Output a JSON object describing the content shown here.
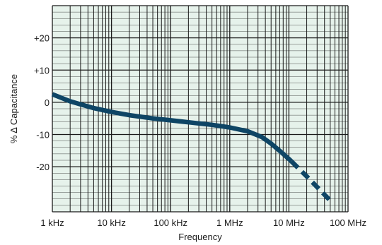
{
  "chart_data": {
    "type": "line",
    "title": "",
    "xlabel": "Frequency",
    "ylabel": "% Δ Capacitance",
    "x_scale": "log",
    "xlim": [
      1000,
      100000000
    ],
    "ylim": [
      -34,
      30
    ],
    "x_ticks": [
      {
        "value": 1000,
        "label": "1 kHz"
      },
      {
        "value": 10000,
        "label": "10 kHz"
      },
      {
        "value": 100000,
        "label": "100 kHz"
      },
      {
        "value": 1000000,
        "label": "1 MHz"
      },
      {
        "value": 10000000,
        "label": "10 MHz"
      },
      {
        "value": 100000000,
        "label": "100 MHz"
      }
    ],
    "y_ticks": [
      {
        "value": 20,
        "label": "+20"
      },
      {
        "value": 10,
        "label": "+10"
      },
      {
        "value": 0,
        "label": "0"
      },
      {
        "value": -10,
        "label": "-10"
      },
      {
        "value": -20,
        "label": "-20"
      }
    ],
    "y_minor_step": 2,
    "grid": true,
    "colors": {
      "plot_background": "#e6f2eb",
      "grid": "#1a1a1a",
      "curve": "#0e4565"
    },
    "series": [
      {
        "style": "solid",
        "x": [
          1000,
          2000,
          5000,
          10000,
          20000,
          50000,
          100000,
          200000,
          500000,
          1000000,
          2000000,
          3500000,
          5000000,
          8000000,
          10000000,
          11000000
        ],
        "y": [
          2.5,
          0.3,
          -1.8,
          -3.0,
          -4.0,
          -5.0,
          -5.6,
          -6.2,
          -7.0,
          -7.8,
          -9.0,
          -10.8,
          -12.8,
          -16.0,
          -17.6,
          -18.3
        ]
      },
      {
        "style": "dashed",
        "x": [
          11000000,
          20000000,
          50000000
        ],
        "y": [
          -18.3,
          -23.0,
          -30.5
        ]
      }
    ]
  }
}
